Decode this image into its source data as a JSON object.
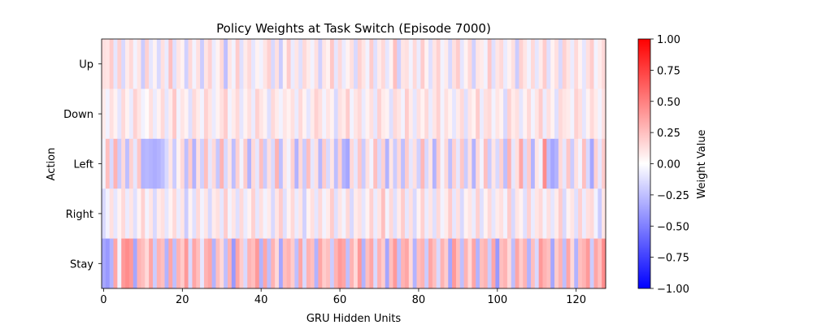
{
  "chart_data": {
    "type": "heatmap",
    "title": "Policy Weights at Task Switch (Episode 7000)",
    "xlabel": "GRU Hidden Units",
    "ylabel": "Action",
    "rows": [
      "Up",
      "Down",
      "Left",
      "Right",
      "Stay"
    ],
    "n_columns": 128,
    "xlim": [
      -0.5,
      127.5
    ],
    "x_ticks": [
      0,
      20,
      40,
      60,
      80,
      100,
      120
    ],
    "colormap": "bwr",
    "colorbar": {
      "label": "Weight Value",
      "vmin": -1.0,
      "vmax": 1.0,
      "ticks": [
        1.0,
        0.75,
        0.5,
        0.25,
        0.0,
        -0.25,
        -0.5,
        -0.75,
        -1.0
      ],
      "tick_labels": [
        "1.00",
        "0.75",
        "0.50",
        "0.25",
        "0.00",
        "−0.25",
        "−0.50",
        "−0.75",
        "−1.00"
      ]
    },
    "grid": false,
    "values": [
      [
        0.12,
        0.1,
        0.2,
        -0.1,
        0.18,
        -0.15,
        0.08,
        0.15,
        -0.05,
        0.1,
        -0.2,
        0.18,
        -0.1,
        0.05,
        -0.15,
        0.12,
        -0.08,
        0.25,
        -0.12,
        0.1,
        0.05,
        -0.18,
        0.15,
        -0.05,
        0.12,
        -0.2,
        0.1,
        0.18,
        -0.08,
        0.05,
        0.15,
        -0.25,
        0.1,
        -0.05,
        0.2,
        -0.12,
        0.08,
        0.15,
        -0.1,
        0.05,
        -0.05,
        0.1,
        0.18,
        -0.15,
        0.12,
        -0.2,
        0.05,
        0.2,
        -0.08,
        0.1,
        -0.12,
        0.15,
        0.08,
        -0.05,
        0.12,
        -0.18,
        0.1,
        0.05,
        0.22,
        -0.1,
        0.15,
        -0.08,
        0.05,
        0.12,
        -0.15,
        0.18,
        0.1,
        -0.05,
        0.2,
        -0.12,
        0.08,
        0.15,
        -0.1,
        0.05,
        0.25,
        -0.18,
        0.1,
        0.12,
        -0.05,
        0.15,
        -0.08,
        0.2,
        0.05,
        -0.12,
        0.1,
        0.18,
        -0.05,
        0.08,
        -0.15,
        0.12,
        0.2,
        -0.1,
        0.05,
        0.15,
        -0.18,
        0.1,
        0.08,
        -0.05,
        0.22,
        -0.12,
        0.1,
        0.15,
        -0.08,
        0.05,
        0.12,
        -0.2,
        0.18,
        0.1,
        -0.05,
        0.15,
        -0.1,
        0.08,
        0.2,
        -0.12,
        0.05,
        0.12,
        -0.15,
        0.18,
        0.1,
        -0.08,
        0.15,
        0.05,
        -0.1,
        0.12,
        0.2,
        -0.05,
        0.08,
        0.15
      ],
      [
        0.08,
        -0.05,
        0.12,
        0.05,
        -0.1,
        0.15,
        0.05,
        -0.08,
        0.18,
        0.1,
        -0.05,
        0.02,
        0.12,
        -0.08,
        0.05,
        0.15,
        -0.1,
        0.08,
        0.22,
        -0.05,
        0.1,
        0.05,
        -0.12,
        0.15,
        0.08,
        -0.05,
        0.18,
        0.1,
        -0.08,
        0.05,
        0.12,
        0.2,
        -0.05,
        0.08,
        0.15,
        -0.1,
        0.05,
        0.12,
        -0.08,
        0.18,
        0.1,
        0.05,
        -0.12,
        0.15,
        0.08,
        -0.05,
        0.1,
        0.05,
        0.12,
        -0.08,
        0.15,
        0.05,
        -0.1,
        0.08,
        0.18,
        0.12,
        -0.05,
        0.1,
        0.05,
        -0.15,
        0.12,
        0.08,
        0.2,
        -0.05,
        0.1,
        0.15,
        -0.08,
        0.05,
        0.12,
        -0.1,
        0.18,
        0.08,
        0.05,
        -0.12,
        0.15,
        0.1,
        -0.05,
        0.2,
        0.08,
        -0.1,
        0.12,
        0.05,
        0.15,
        -0.08,
        0.1,
        0.18,
        -0.05,
        0.12,
        0.05,
        -0.1,
        0.08,
        0.15,
        -0.12,
        0.1,
        0.05,
        0.2,
        -0.08,
        0.12,
        0.15,
        -0.05,
        0.1,
        0.05,
        -0.15,
        0.18,
        0.08,
        0.12,
        -0.1,
        0.05,
        0.15,
        -0.05,
        0.1,
        0.2,
        -0.08,
        0.12,
        0.05,
        -0.12,
        0.15,
        0.1,
        0.08,
        -0.05,
        0.18,
        0.12,
        -0.1,
        0.05,
        0.15,
        0.08,
        -0.05,
        0.12
      ],
      [
        -0.05,
        0.25,
        -0.15,
        0.3,
        -0.2,
        0.15,
        -0.25,
        0.18,
        -0.1,
        0.22,
        -0.3,
        -0.28,
        -0.3,
        -0.32,
        -0.3,
        -0.25,
        -0.15,
        0.1,
        -0.2,
        0.05,
        0.15,
        -0.25,
        0.2,
        -0.3,
        0.12,
        -0.18,
        0.25,
        -0.1,
        0.15,
        -0.22,
        0.3,
        -0.15,
        0.1,
        -0.25,
        0.18,
        -0.05,
        0.2,
        -0.3,
        0.15,
        -0.1,
        0.25,
        -0.2,
        0.12,
        -0.15,
        0.3,
        -0.25,
        0.1,
        -0.05,
        0.18,
        -0.3,
        0.15,
        -0.2,
        0.25,
        -0.1,
        0.12,
        -0.28,
        0.2,
        -0.15,
        0.1,
        -0.25,
        0.18,
        -0.3,
        -0.35,
        0.15,
        -0.1,
        0.22,
        -0.2,
        0.12,
        -0.05,
        0.25,
        -0.15,
        0.18,
        -0.3,
        0.1,
        -0.2,
        0.15,
        -0.25,
        0.2,
        -0.1,
        0.12,
        -0.18,
        0.28,
        -0.15,
        0.1,
        -0.3,
        0.2,
        -0.05,
        0.15,
        -0.25,
        0.18,
        -0.1,
        0.22,
        -0.2,
        0.12,
        -0.3,
        0.15,
        -0.05,
        0.25,
        -0.2,
        0.1,
        -0.15,
        0.18,
        -0.25,
        0.3,
        -0.1,
        0.12,
        0.35,
        -0.15,
        0.2,
        -0.3,
        0.1,
        -0.05,
        0.45,
        -0.25,
        -0.35,
        -0.3,
        0.15,
        -0.1,
        0.22,
        -0.2,
        0.12,
        -0.05,
        0.25,
        -0.15,
        -0.35,
        0.18,
        -0.1,
        0.2
      ],
      [
        -0.15,
        -0.05,
        0.12,
        -0.1,
        0.05,
        0.15,
        -0.08,
        0.1,
        -0.12,
        0.05,
        0.18,
        -0.05,
        0.1,
        -0.15,
        0.08,
        0.12,
        -0.1,
        0.05,
        0.15,
        -0.08,
        0.1,
        -0.2,
        0.05,
        -0.12,
        0.15,
        -0.05,
        0.1,
        -0.15,
        0.08,
        0.12,
        -0.1,
        0.2,
        -0.05,
        0.1,
        -0.12,
        0.15,
        -0.08,
        0.05,
        0.18,
        -0.1,
        0.12,
        -0.05,
        0.08,
        -0.15,
        0.1,
        0.2,
        -0.12,
        0.05,
        0.15,
        -0.08,
        0.1,
        -0.18,
        0.05,
        0.12,
        -0.1,
        0.15,
        -0.05,
        0.08,
        0.2,
        -0.12,
        0.1,
        -0.05,
        0.15,
        -0.15,
        0.08,
        0.12,
        -0.1,
        0.05,
        0.18,
        -0.08,
        0.1,
        0.25,
        -0.05,
        0.15,
        -0.12,
        0.08,
        0.2,
        -0.1,
        0.12,
        -0.15,
        0.05,
        0.18,
        -0.08,
        0.1,
        -0.12,
        0.15,
        -0.05,
        0.08,
        0.2,
        -0.1,
        0.12,
        -0.15,
        0.05,
        0.1,
        -0.08,
        0.18,
        -0.12,
        0.05,
        0.15,
        -0.1,
        0.08,
        0.12,
        -0.05,
        0.2,
        -0.15,
        0.1,
        0.05,
        -0.12,
        0.18,
        -0.08,
        0.1,
        0.15,
        -0.05,
        0.12,
        -0.1,
        0.08,
        0.2,
        -0.15,
        0.05,
        0.1,
        -0.12,
        0.18,
        -0.08,
        0.12,
        0.15,
        -0.05,
        -0.2,
        0.1
      ],
      [
        -0.35,
        -0.4,
        -0.3,
        0.35,
        -0.05,
        0.4,
        0.45,
        0.4,
        -0.35,
        0.3,
        0.25,
        0.15,
        0.35,
        -0.2,
        0.3,
        0.25,
        -0.3,
        0.35,
        -0.25,
        0.3,
        0.2,
        0.4,
        -0.15,
        0.35,
        0.25,
        -0.1,
        0.3,
        0.35,
        -0.3,
        0.25,
        0.15,
        -0.25,
        0.3,
        -0.4,
        0.35,
        0.2,
        -0.15,
        0.3,
        0.25,
        0.4,
        -0.3,
        0.35,
        -0.25,
        0.3,
        0.15,
        -0.35,
        0.25,
        0.3,
        0.2,
        -0.25,
        0.35,
        -0.15,
        0.3,
        0.25,
        -0.3,
        0.35,
        0.2,
        0.25,
        -0.2,
        0.3,
        0.4,
        0.35,
        -0.25,
        0.3,
        0.15,
        0.4,
        -0.3,
        0.25,
        0.35,
        -0.15,
        0.3,
        0.2,
        -0.35,
        0.25,
        0.4,
        -0.25,
        0.3,
        0.35,
        0.15,
        -0.3,
        0.25,
        0.3,
        -0.2,
        0.35,
        0.25,
        -0.15,
        0.3,
        0.2,
        -0.35,
        0.4,
        0.25,
        -0.25,
        0.3,
        0.15,
        0.35,
        -0.3,
        0.25,
        0.3,
        -0.2,
        0.35,
        -0.4,
        0.25,
        0.3,
        0.15,
        -0.25,
        0.35,
        0.2,
        0.3,
        -0.3,
        0.25,
        -0.15,
        0.4,
        0.3,
        0.25,
        -0.35,
        0.2,
        0.3,
        -0.25,
        0.35,
        0.15,
        -0.3,
        0.25,
        0.3,
        0.4,
        -0.2,
        0.35,
        0.25,
        0.45
      ]
    ]
  }
}
